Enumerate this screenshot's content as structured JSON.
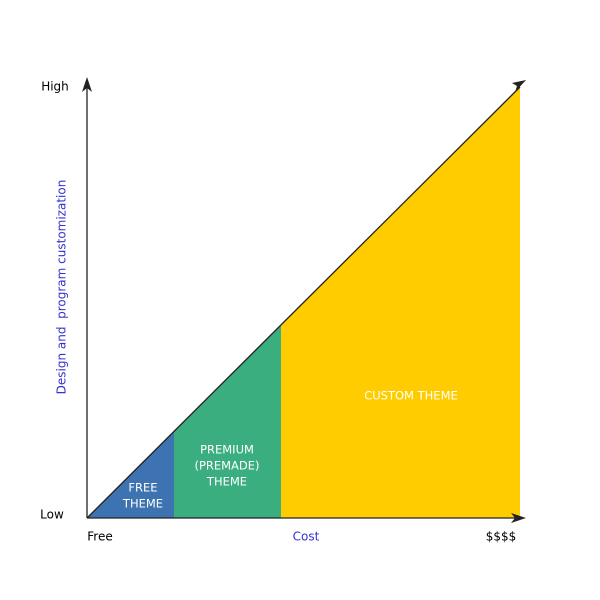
{
  "axes": {
    "y_label": "Design and  program customization",
    "y_high": "High",
    "y_low": "Low",
    "x_label": "Cost",
    "x_start": "Free",
    "x_end": "$$$$"
  },
  "regions": [
    {
      "lines": [
        "FREE",
        "THEME"
      ]
    },
    {
      "lines": [
        "PREMIUM",
        "(PREMADE)",
        "THEME"
      ]
    },
    {
      "lines": [
        "CUSTOM THEME"
      ]
    }
  ]
}
